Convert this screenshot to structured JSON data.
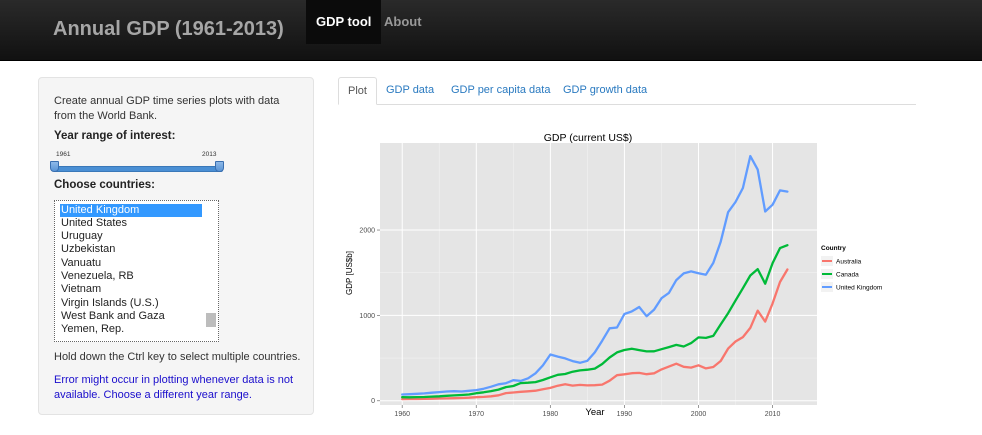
{
  "navbar": {
    "title": "Annual GDP (1961-2013)",
    "items": [
      {
        "label": "GDP tool",
        "active": true
      },
      {
        "label": "About",
        "active": false
      }
    ]
  },
  "sidebar": {
    "intro": "Create annual GDP time series plots with data from the World Bank.",
    "year_label": "Year range of interest:",
    "slider": {
      "min": "1961",
      "max": "2013",
      "from": 1961,
      "to": 2013
    },
    "countries_label": "Choose countries:",
    "countries": [
      {
        "name": "United Kingdom",
        "selected": true
      },
      {
        "name": "United States",
        "selected": false
      },
      {
        "name": "Uruguay",
        "selected": false
      },
      {
        "name": "Uzbekistan",
        "selected": false
      },
      {
        "name": "Vanuatu",
        "selected": false
      },
      {
        "name": "Venezuela, RB",
        "selected": false
      },
      {
        "name": "Vietnam",
        "selected": false
      },
      {
        "name": "Virgin Islands (U.S.)",
        "selected": false
      },
      {
        "name": "West Bank and Gaza",
        "selected": false
      },
      {
        "name": "Yemen, Rep.",
        "selected": false
      }
    ],
    "hint": "Hold down the Ctrl key to select multiple countries.",
    "error": "Error might occur in plotting whenever data is not available. Choose a different year range."
  },
  "tabs": [
    {
      "label": "Plot",
      "active": true
    },
    {
      "label": "GDP data",
      "active": false
    },
    {
      "label": "GDP per capita data",
      "active": false
    },
    {
      "label": "GDP growth data",
      "active": false
    }
  ],
  "chart_data": {
    "type": "line",
    "title": "GDP (current US$)",
    "xlabel": "Year",
    "ylabel": "GDP [US$b]",
    "xlim": [
      1957,
      2016
    ],
    "ylim": [
      -50,
      3020
    ],
    "x_ticks": [
      1960,
      1970,
      1980,
      1990,
      2000,
      2010
    ],
    "y_ticks": [
      0,
      1000,
      2000
    ],
    "grid": true,
    "background": "#e5e5e5",
    "legend": {
      "title": "Country",
      "position": "right"
    },
    "x": [
      1960,
      1961,
      1962,
      1963,
      1964,
      1965,
      1966,
      1967,
      1968,
      1969,
      1970,
      1971,
      1972,
      1973,
      1974,
      1975,
      1976,
      1977,
      1978,
      1979,
      1980,
      1981,
      1982,
      1983,
      1984,
      1985,
      1986,
      1987,
      1988,
      1989,
      1990,
      1991,
      1992,
      1993,
      1994,
      1995,
      1996,
      1997,
      1998,
      1999,
      2000,
      2001,
      2002,
      2003,
      2004,
      2005,
      2006,
      2007,
      2008,
      2009,
      2010,
      2011,
      2012
    ],
    "series": [
      {
        "name": "Australia",
        "color": "#f8766d",
        "values": [
          19,
          20,
          20,
          22,
          24,
          26,
          27,
          30,
          32,
          36,
          41,
          45,
          52,
          64,
          89,
          97,
          105,
          110,
          118,
          135,
          150,
          176,
          194,
          177,
          185,
          180,
          182,
          189,
          235,
          299,
          310,
          323,
          326,
          311,
          322,
          367,
          400,
          434,
          398,
          388,
          415,
          379,
          395,
          466,
          611,
          694,
          746,
          853,
          1055,
          927,
          1141,
          1391,
          1538
        ]
      },
      {
        "name": "Canada",
        "color": "#00ba38",
        "values": [
          41,
          40,
          42,
          44,
          48,
          52,
          58,
          62,
          67,
          73,
          88,
          99,
          113,
          131,
          160,
          173,
          207,
          211,
          218,
          243,
          274,
          304,
          313,
          340,
          355,
          364,
          377,
          431,
          507,
          566,
          595,
          610,
          593,
          578,
          579,
          604,
          629,
          654,
          635,
          675,
          742,
          736,
          760,
          895,
          1026,
          1173,
          1319,
          1468,
          1542,
          1371,
          1613,
          1789,
          1822
        ]
      },
      {
        "name": "United Kingdom",
        "color": "#619cff",
        "values": [
          73,
          77,
          81,
          86,
          94,
          101,
          108,
          112,
          108,
          116,
          125,
          141,
          164,
          192,
          206,
          241,
          232,
          263,
          322,
          414,
          542,
          517,
          496,
          464,
          444,
          468,
          566,
          703,
          849,
          858,
          1016,
          1047,
          1098,
          990,
          1068,
          1202,
          1264,
          1413,
          1492,
          1516,
          1494,
          1477,
          1615,
          1863,
          2209,
          2329,
          2493,
          2866,
          2708,
          2217,
          2297,
          2465,
          2451
        ]
      }
    ]
  }
}
